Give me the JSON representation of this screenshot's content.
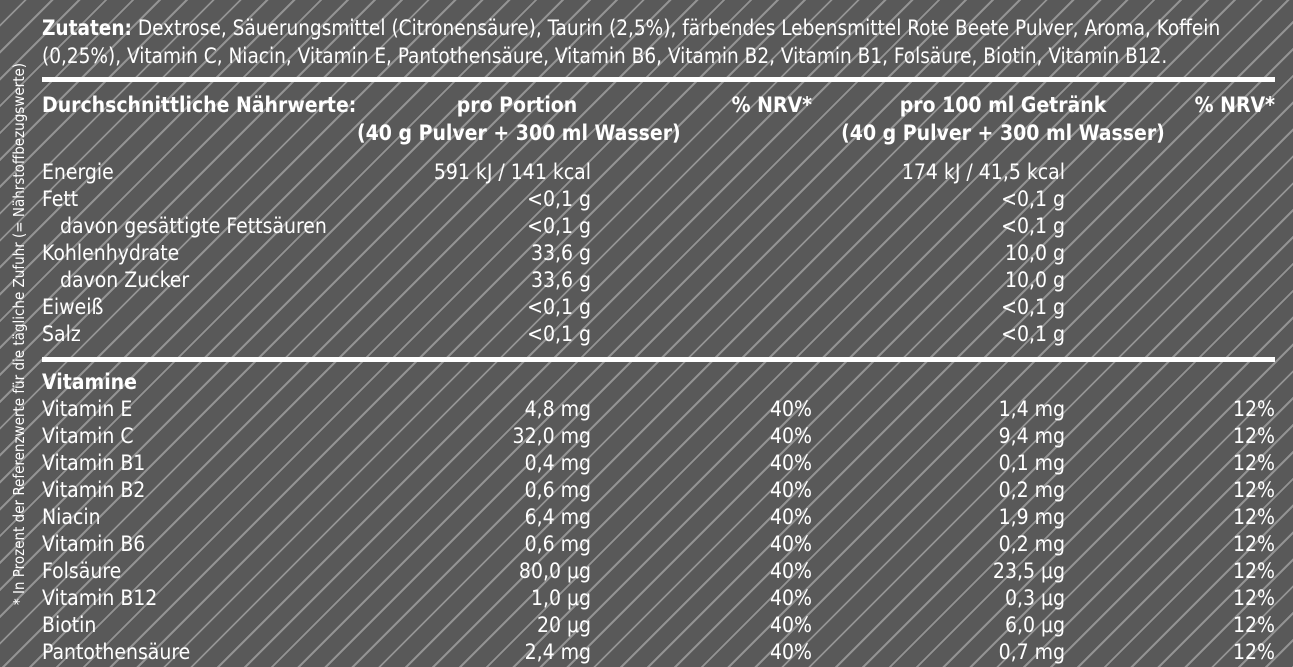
{
  "side_note": "* In Prozent der Referenzwerte für die tägliche Zufuhr (= Nährstoffbezugswerte)",
  "ingredients": {
    "label": "Zutaten:",
    "text": " Dextrose, Säuerungsmittel (Citronensäure), Taurin (2,5%), färbendes Lebensmittel Rote Beete Pulver, Aroma, Koffein (0,25%), Vitamin C, Niacin, Vitamin E, Pantothensäure, Vitamin B6, Vitamin B2, Vitamin B1, Folsäure, Biotin, Vitamin B12."
  },
  "header": {
    "col_name": "Durchschnittliche Nährwerte:",
    "col_per_portion": "pro Portion",
    "col_per_portion_sub": "(40 g Pulver + 300 ml Wasser)",
    "col_nrv1": "% NRV*",
    "col_per_100": "pro 100 ml Getränk",
    "col_per_100_sub": "(40 g Pulver + 300 ml Wasser)",
    "col_nrv2": "% NRV*"
  },
  "nutrients": [
    {
      "name": "Energie",
      "portion": "591 kJ / 141 kcal",
      "per100": "174 kJ / 41,5 kcal"
    },
    {
      "name": "Fett",
      "portion": "<0,1 g",
      "per100": "<0,1 g"
    },
    {
      "name": "davon gesättigte Fettsäuren",
      "portion": "<0,1 g",
      "per100": "<0,1 g"
    },
    {
      "name": "Kohlenhydrate",
      "portion": "33,6 g",
      "per100": "10,0 g"
    },
    {
      "name": "davon Zucker",
      "portion": "33,6 g",
      "per100": "10,0 g"
    },
    {
      "name": "Eiweiß",
      "portion": "<0,1 g",
      "per100": "<0,1 g"
    },
    {
      "name": "Salz",
      "portion": "<0,1 g",
      "per100": "<0,1 g"
    }
  ],
  "vitamins_title": "Vitamine",
  "vitamins": [
    {
      "name": "Vitamin E",
      "portion": "4,8 mg",
      "nrv1": "40%",
      "per100": "1,4 mg",
      "nrv2": "12%"
    },
    {
      "name": "Vitamin C",
      "portion": "32,0 mg",
      "nrv1": "40%",
      "per100": "9,4 mg",
      "nrv2": "12%"
    },
    {
      "name": "Vitamin B1",
      "portion": "0,4 mg",
      "nrv1": "40%",
      "per100": "0,1 mg",
      "nrv2": "12%"
    },
    {
      "name": "Vitamin B2",
      "portion": "0,6 mg",
      "nrv1": "40%",
      "per100": "0,2 mg",
      "nrv2": "12%"
    },
    {
      "name": "Niacin",
      "portion": "6,4 mg",
      "nrv1": "40%",
      "per100": "1,9 mg",
      "nrv2": "12%"
    },
    {
      "name": "Vitamin B6",
      "portion": "0,6 mg",
      "nrv1": "40%",
      "per100": "0,2 mg",
      "nrv2": "12%"
    },
    {
      "name": "Folsäure",
      "portion": "80,0 μg",
      "nrv1": "40%",
      "per100": "23,5 μg",
      "nrv2": "12%"
    },
    {
      "name": "Vitamin B12",
      "portion": "1,0 μg",
      "nrv1": "40%",
      "per100": "0,3 μg",
      "nrv2": "12%"
    },
    {
      "name": "Biotin",
      "portion": "20 μg",
      "nrv1": "40%",
      "per100": "6,0 μg",
      "nrv2": "12%"
    },
    {
      "name": "Pantothensäure",
      "portion": "2,4 mg",
      "nrv1": "40%",
      "per100": "0,7 mg",
      "nrv2": "12%"
    }
  ]
}
